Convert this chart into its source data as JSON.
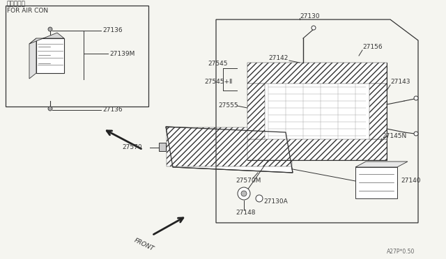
{
  "background_color": "#f5f5f0",
  "line_color": "#333333",
  "diagram_code": "A27P*0.50",
  "labels": {
    "air_con_jp": "エアコン用",
    "air_con_en": "FOR AIR CON",
    "front": "FRONT",
    "part_27130": "27130",
    "part_27136_top": "27136",
    "part_27136_bot": "27136",
    "part_27139M": "27139M",
    "part_27142": "27142",
    "part_27143": "27143",
    "part_27145N": "27145N",
    "part_27140": "27140",
    "part_27156": "27156",
    "part_27545": "27545",
    "part_27545b": "27545+Ⅱ",
    "part_27555": "27555",
    "part_27570": "27570",
    "part_27570M": "27570M",
    "part_27148": "27148",
    "part_27130A": "27130A"
  }
}
